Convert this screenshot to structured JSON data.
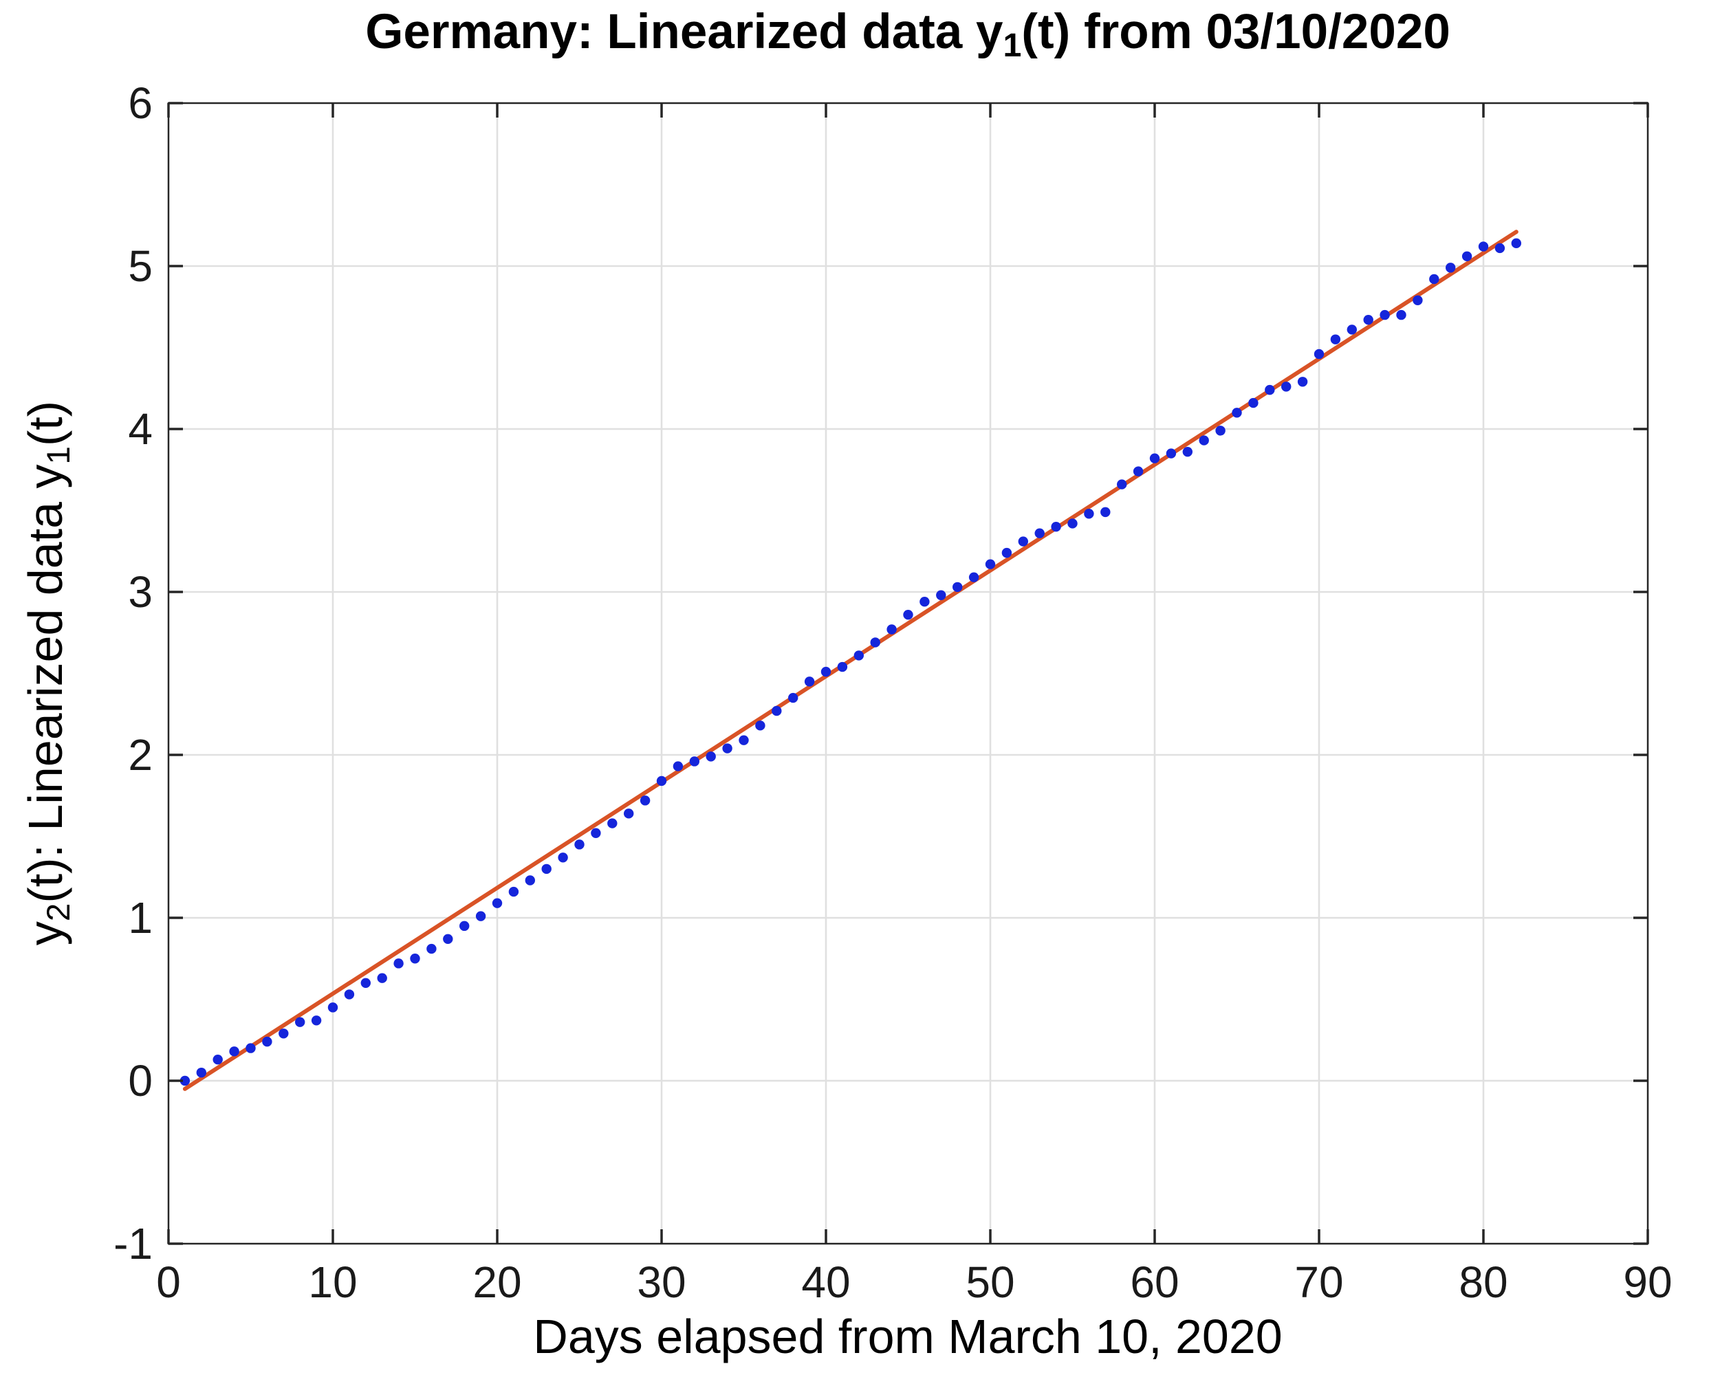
{
  "figure": {
    "title": {
      "pre": "Germany: Linearized data y",
      "sub": "1",
      "post": "(t) from 03/10/2020"
    },
    "xlabel": "Days elapsed from March 10, 2020",
    "ylabel": {
      "p1": "y",
      "s1": "2",
      "p2": "(t): Linearized data y",
      "s2": "1",
      "p3": "(t)"
    }
  },
  "axes": {
    "x_min": 0,
    "x_max": 90,
    "y_min": -1,
    "y_max": 6,
    "x_ticks": [
      0,
      10,
      20,
      30,
      40,
      50,
      60,
      70,
      80,
      90
    ],
    "y_ticks": [
      -1,
      0,
      1,
      2,
      3,
      4,
      5,
      6
    ],
    "grid": true
  },
  "colors": {
    "dot": "#1525DB",
    "fit_line": "#D95326",
    "grid": "#E0E0E0",
    "frame": "#262626",
    "tick_text": "#1a1a1a",
    "background": "#ffffff"
  },
  "chart_data": {
    "type": "scatter",
    "title": "Germany: Linearized data y_1(t) from 03/10/2020",
    "xlabel": "Days elapsed from March 10, 2020",
    "ylabel": "y_2(t): Linearized data y_1(t)",
    "xlim": [
      0,
      90
    ],
    "ylim": [
      -1,
      6
    ],
    "grid": true,
    "legend": "none",
    "series": [
      {
        "name": "linearized data points",
        "style": "dots",
        "color": "#1525DB",
        "marker_radius": 7.2,
        "points": [
          [
            1,
            0.0
          ],
          [
            2,
            0.05
          ],
          [
            3,
            0.13
          ],
          [
            4,
            0.18
          ],
          [
            5,
            0.2
          ],
          [
            6,
            0.24
          ],
          [
            7,
            0.29
          ],
          [
            8,
            0.36
          ],
          [
            9,
            0.37
          ],
          [
            10,
            0.45
          ],
          [
            11,
            0.53
          ],
          [
            12,
            0.6
          ],
          [
            13,
            0.63
          ],
          [
            14,
            0.72
          ],
          [
            15,
            0.75
          ],
          [
            16,
            0.81
          ],
          [
            17,
            0.87
          ],
          [
            18,
            0.95
          ],
          [
            19,
            1.01
          ],
          [
            20,
            1.09
          ],
          [
            21,
            1.16
          ],
          [
            22,
            1.23
          ],
          [
            23,
            1.3
          ],
          [
            24,
            1.37
          ],
          [
            25,
            1.45
          ],
          [
            26,
            1.52
          ],
          [
            27,
            1.58
          ],
          [
            28,
            1.64
          ],
          [
            29,
            1.72
          ],
          [
            30,
            1.84
          ],
          [
            31,
            1.93
          ],
          [
            32,
            1.96
          ],
          [
            33,
            1.99
          ],
          [
            34,
            2.04
          ],
          [
            35,
            2.09
          ],
          [
            36,
            2.18
          ],
          [
            37,
            2.27
          ],
          [
            38,
            2.35
          ],
          [
            39,
            2.45
          ],
          [
            40,
            2.51
          ],
          [
            41,
            2.54
          ],
          [
            42,
            2.61
          ],
          [
            43,
            2.69
          ],
          [
            44,
            2.77
          ],
          [
            45,
            2.86
          ],
          [
            46,
            2.94
          ],
          [
            47,
            2.98
          ],
          [
            48,
            3.03
          ],
          [
            49,
            3.09
          ],
          [
            50,
            3.17
          ],
          [
            51,
            3.24
          ],
          [
            52,
            3.31
          ],
          [
            53,
            3.36
          ],
          [
            54,
            3.4
          ],
          [
            55,
            3.42
          ],
          [
            56,
            3.48
          ],
          [
            57,
            3.49
          ],
          [
            58,
            3.66
          ],
          [
            59,
            3.74
          ],
          [
            60,
            3.82
          ],
          [
            61,
            3.85
          ],
          [
            62,
            3.86
          ],
          [
            63,
            3.93
          ],
          [
            64,
            3.99
          ],
          [
            65,
            4.1
          ],
          [
            66,
            4.16
          ],
          [
            67,
            4.24
          ],
          [
            68,
            4.26
          ],
          [
            69,
            4.29
          ],
          [
            70,
            4.46
          ],
          [
            71,
            4.55
          ],
          [
            72,
            4.61
          ],
          [
            73,
            4.67
          ],
          [
            74,
            4.7
          ],
          [
            75,
            4.7
          ],
          [
            76,
            4.79
          ],
          [
            77,
            4.92
          ],
          [
            78,
            4.99
          ],
          [
            79,
            5.06
          ],
          [
            80,
            5.12
          ],
          [
            81,
            5.11
          ],
          [
            82,
            5.14
          ]
        ]
      },
      {
        "name": "linear fit line",
        "style": "line",
        "color": "#D95326",
        "line_width": 6,
        "points": [
          [
            1,
            -0.05
          ],
          [
            82,
            5.21
          ]
        ]
      }
    ]
  }
}
